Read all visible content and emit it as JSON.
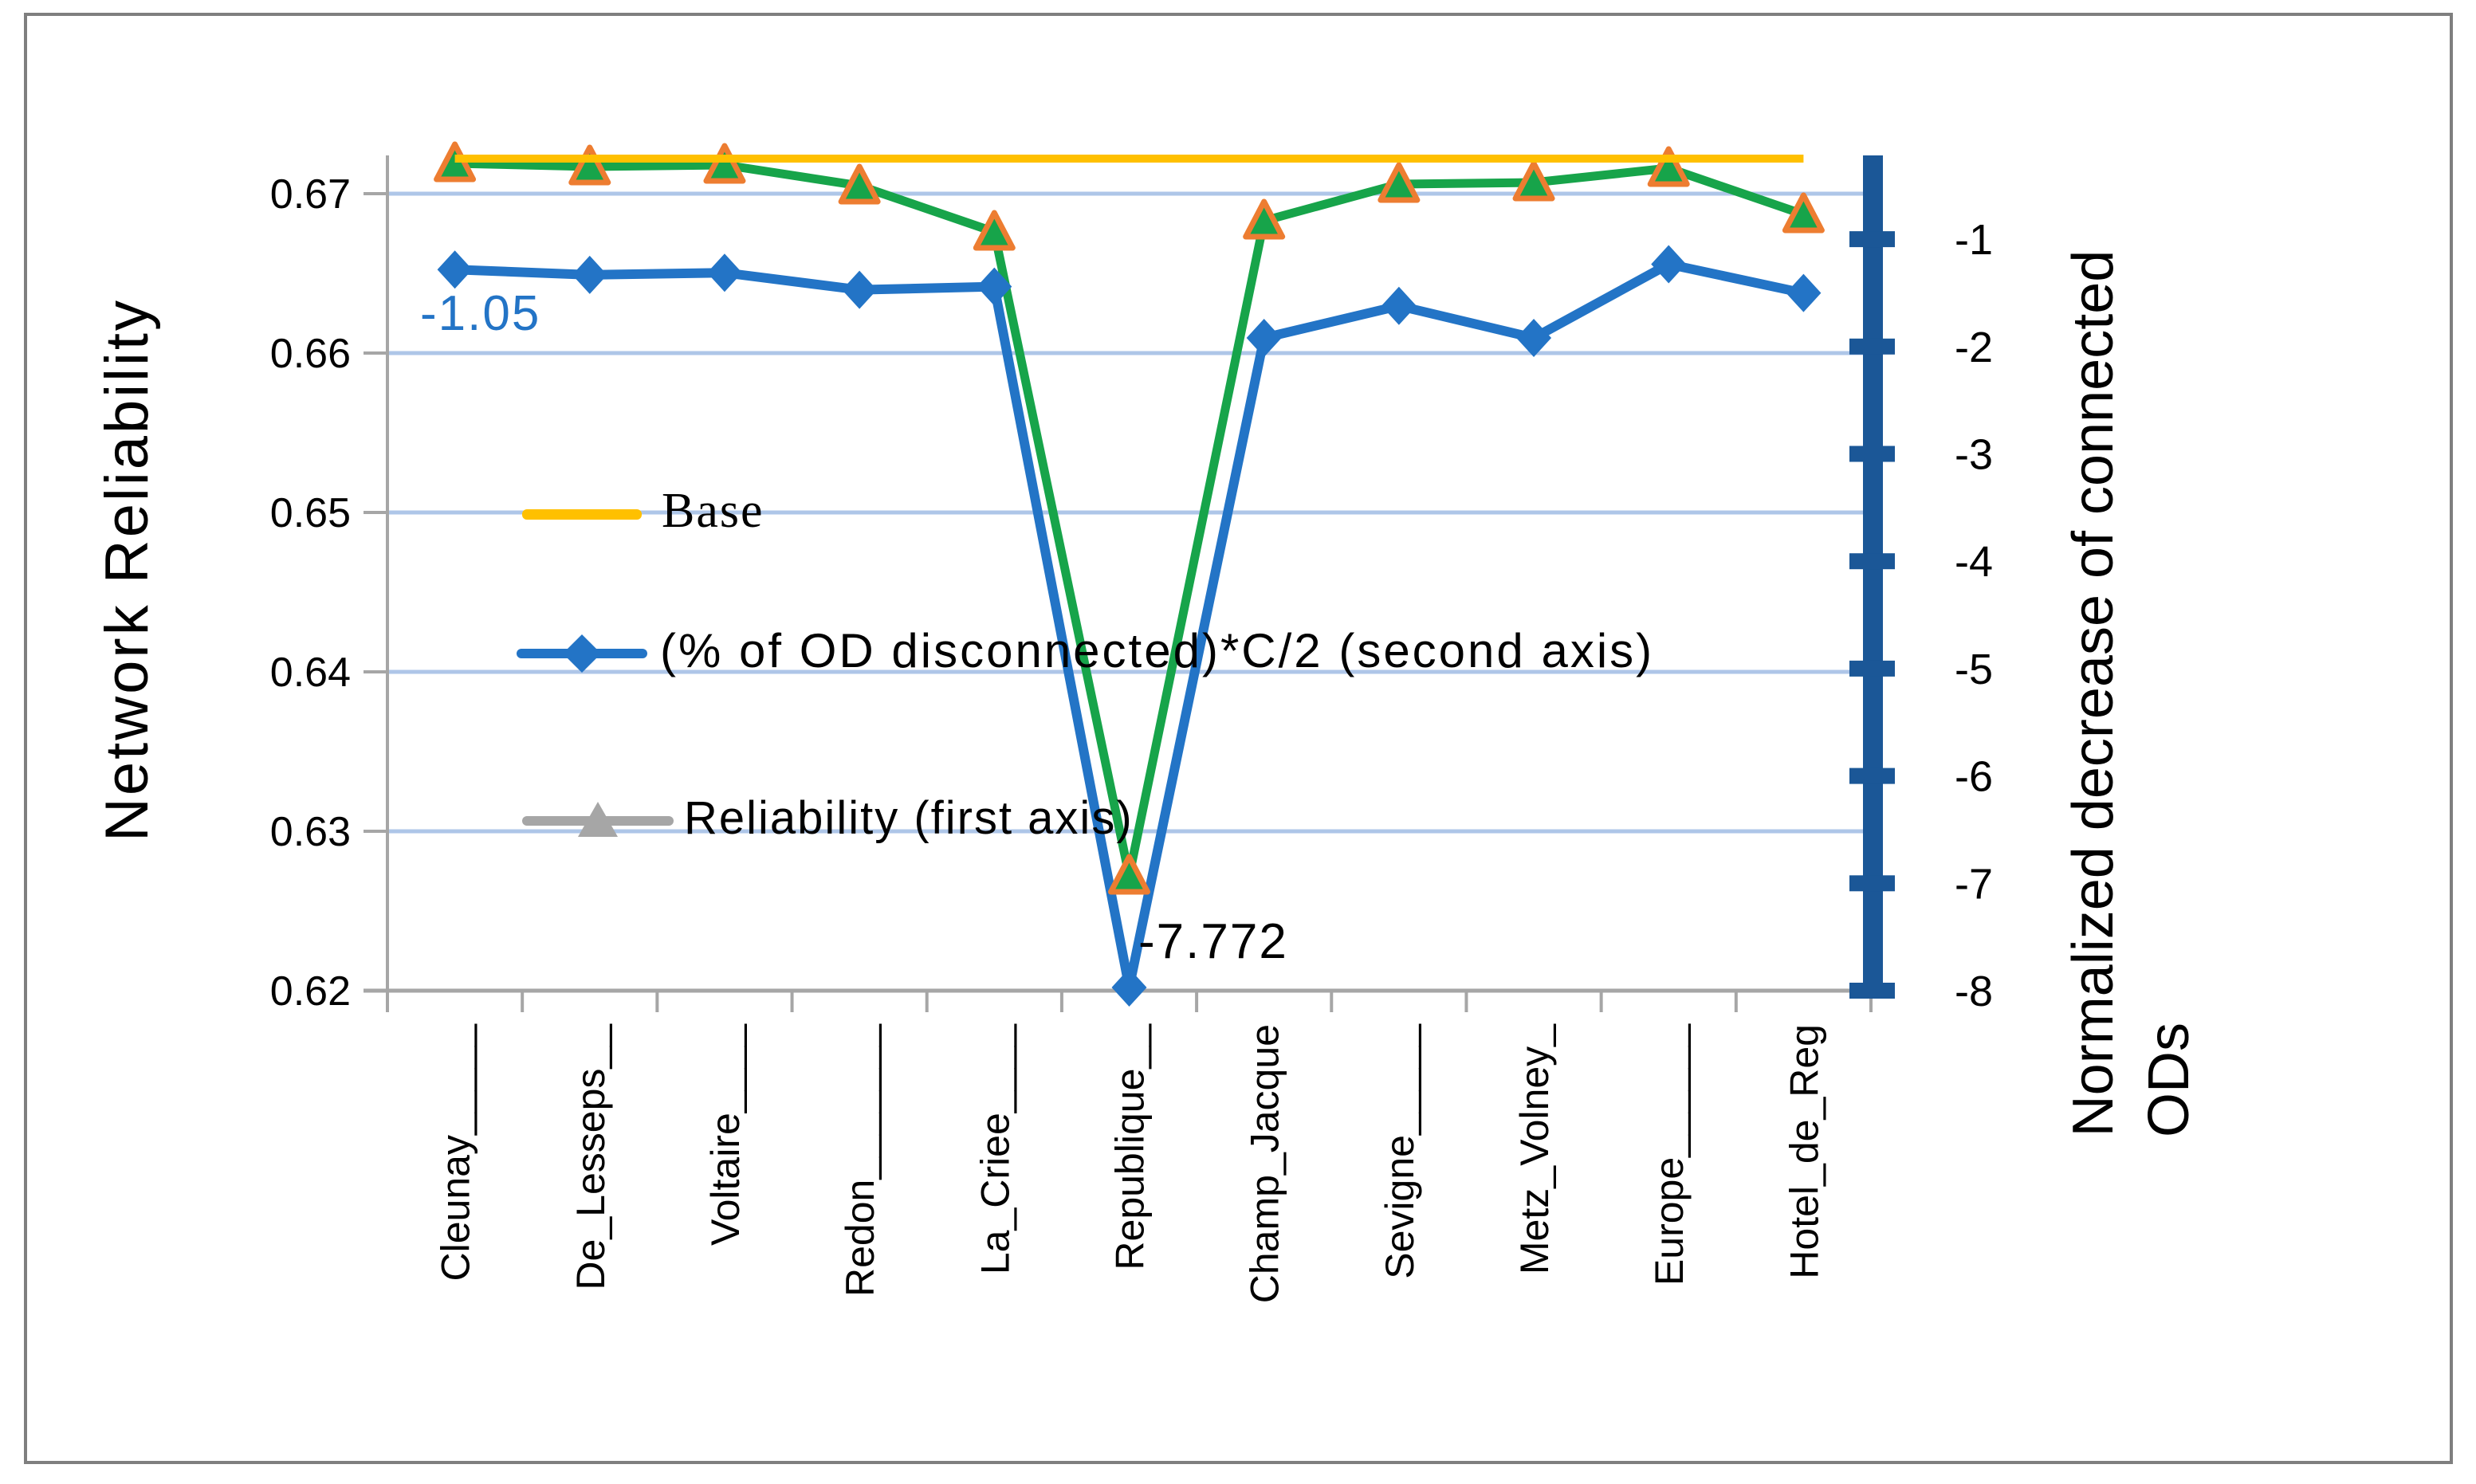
{
  "chart_data": {
    "type": "line",
    "title": "",
    "categories": [
      "Cleunay_____",
      "De_Lesseps__",
      "Voltaire____",
      "Redon_______",
      "La_Criee____",
      "Republique__",
      "Champ_Jacque",
      "Sevigne_____",
      "Metz_Volney_",
      "Europe______",
      "Hotel_de_Reg"
    ],
    "series": [
      {
        "name": "Base",
        "axis": "first",
        "color": "#FFC000",
        "marker": "none",
        "values": [
          0.6722,
          0.6722,
          0.6722,
          0.6722,
          0.6722,
          0.6722,
          0.6722,
          0.6722,
          0.6722,
          0.6722,
          0.6722
        ]
      },
      {
        "name": "(% of OD disconnected)*C/2 (second axis)",
        "axis": "second",
        "color": "#2374C6",
        "marker": "diamond",
        "values": [
          -1.05,
          -1.1,
          -1.08,
          -1.24,
          -1.21,
          -7.772,
          -1.69,
          -1.39,
          -1.69,
          -1.0,
          -1.27
        ]
      },
      {
        "name": "Reliability (first axis)",
        "axis": "first",
        "color": "#17A44A",
        "marker": "triangle",
        "marker_edge": "#ED7D31",
        "legend_color": "#A6A6A6",
        "values": [
          0.6719,
          0.6717,
          0.6718,
          0.6705,
          0.6676,
          0.6272,
          0.6683,
          0.6706,
          0.6707,
          0.6716,
          0.6687
        ]
      }
    ],
    "left_axis": {
      "label": "Network Reliability",
      "min": 0.62,
      "max": 0.67,
      "ticks": [
        "0.67",
        "0.66",
        "0.65",
        "0.64",
        "0.63",
        "0.62"
      ],
      "tick_values": [
        0.67,
        0.66,
        0.65,
        0.64,
        0.63,
        0.62
      ],
      "grid_values": [
        0.67,
        0.66,
        0.65,
        0.64,
        0.63
      ]
    },
    "right_axis": {
      "label_line1": "Normalized decrease  of connected",
      "label_line2": "ODs",
      "ticks": [
        "-1",
        "-2",
        "-3",
        "-4",
        "-5",
        "-6",
        "-7",
        "-8"
      ],
      "tick_values": [
        -1,
        -2,
        -3,
        -4,
        -5,
        -6,
        -7,
        -8
      ],
      "bar_color": "#1B5797"
    },
    "annotations": [
      {
        "text": "-1.05",
        "color": "#2374C6"
      },
      {
        "text": "-7.772",
        "color": "#000000"
      }
    ],
    "grid_color": "#AEC6E8",
    "axis_color": "#A6A6A6",
    "legend_position": "inside-left"
  }
}
